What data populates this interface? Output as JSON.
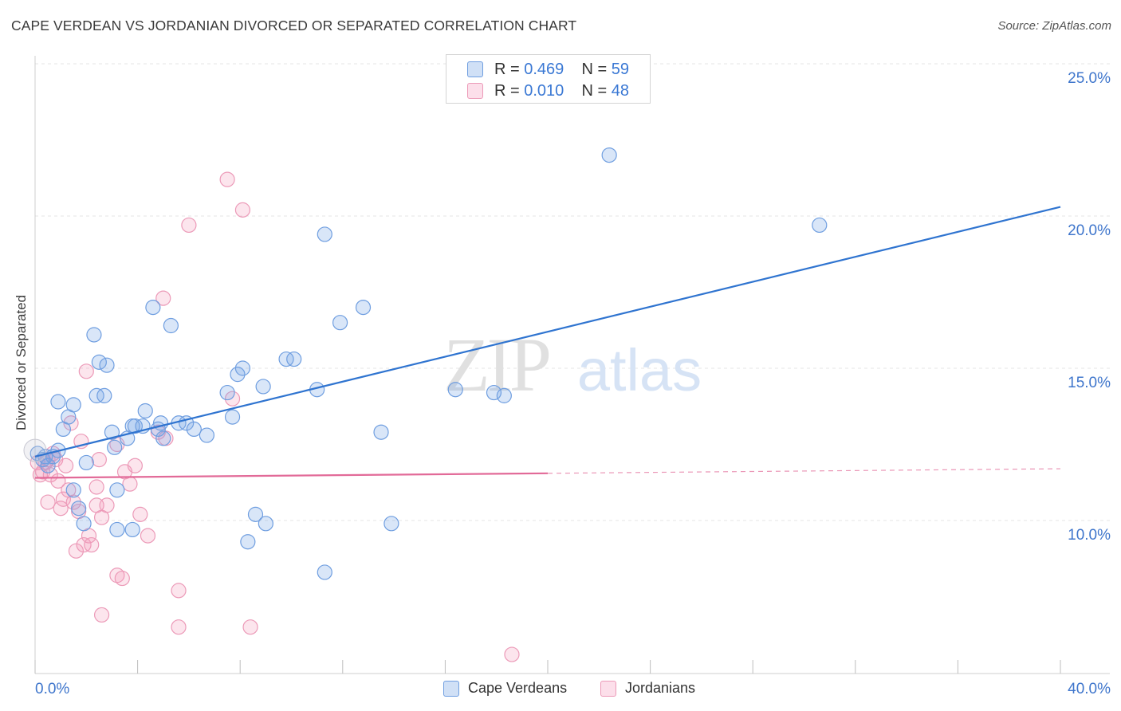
{
  "header": {
    "title": "CAPE VERDEAN VS JORDANIAN DIVORCED OR SEPARATED CORRELATION CHART",
    "source": "Source: ZipAtlas.com"
  },
  "legend_top": {
    "rows": [
      {
        "r_label": "R = ",
        "r_value": "0.469",
        "n_label": "N = ",
        "n_value": "59"
      },
      {
        "r_label": "R = ",
        "r_value": "0.010",
        "n_label": "N = ",
        "n_value": "48"
      }
    ]
  },
  "watermark": {
    "zip": "ZIP",
    "atlas": "atlas"
  },
  "colors": {
    "cape_fill": "rgba(120,165,230,0.28)",
    "cape_stroke": "#6f9ee0",
    "cape_line": "#2f74d0",
    "jor_fill": "rgba(245,150,185,0.25)",
    "jor_stroke": "#ec9ab8",
    "jor_line": "#e26a98",
    "tick_text": "#3f76cc",
    "grid": "#e4e4e4"
  },
  "chart_data": {
    "type": "scatter",
    "title": "CAPE VERDEAN VS JORDANIAN DIVORCED OR SEPARATED CORRELATION CHART",
    "xlabel": "",
    "ylabel": "Divorced or Separated",
    "xlim": [
      0,
      40
    ],
    "ylim": [
      5.5,
      26.5
    ],
    "x_ticks": [
      0,
      4,
      8,
      12,
      16,
      20,
      24,
      28,
      32,
      36,
      40
    ],
    "x_tick_labels": [
      {
        "x": 0,
        "label": "0.0%"
      },
      {
        "x": 40,
        "label": "40.0%"
      }
    ],
    "y_ticks": [
      10,
      15,
      20,
      25
    ],
    "y_tick_labels": [
      "10.0%",
      "15.0%",
      "20.0%",
      "25.0%"
    ],
    "grid": true,
    "legend": "top-center",
    "series": [
      {
        "name": "Cape Verdeans",
        "r": 0.469,
        "n": 59,
        "trend": {
          "x": [
            0,
            40
          ],
          "y": [
            12.1,
            20.3
          ],
          "dashed_after": null
        },
        "points": [
          [
            0.1,
            12.2
          ],
          [
            0.3,
            12.0
          ],
          [
            0.4,
            12.1
          ],
          [
            0.5,
            11.8
          ],
          [
            0.7,
            12.1
          ],
          [
            0.9,
            12.3
          ],
          [
            0.9,
            13.9
          ],
          [
            1.1,
            13.0
          ],
          [
            1.3,
            13.4
          ],
          [
            1.5,
            13.8
          ],
          [
            1.5,
            11.0
          ],
          [
            1.7,
            10.4
          ],
          [
            1.9,
            9.9
          ],
          [
            2.0,
            11.9
          ],
          [
            2.3,
            16.1
          ],
          [
            2.4,
            14.1
          ],
          [
            2.5,
            15.2
          ],
          [
            2.7,
            14.1
          ],
          [
            2.8,
            15.1
          ],
          [
            3.0,
            12.9
          ],
          [
            3.1,
            12.4
          ],
          [
            3.2,
            11.0
          ],
          [
            3.2,
            9.7
          ],
          [
            3.6,
            12.7
          ],
          [
            3.8,
            13.1
          ],
          [
            3.9,
            13.1
          ],
          [
            4.2,
            13.1
          ],
          [
            4.3,
            13.6
          ],
          [
            4.6,
            17.0
          ],
          [
            4.8,
            13.0
          ],
          [
            4.9,
            13.2
          ],
          [
            5.0,
            12.7
          ],
          [
            5.3,
            16.4
          ],
          [
            5.6,
            13.2
          ],
          [
            5.9,
            13.2
          ],
          [
            6.2,
            13.0
          ],
          [
            6.7,
            12.8
          ],
          [
            7.5,
            14.2
          ],
          [
            7.7,
            13.4
          ],
          [
            7.9,
            14.8
          ],
          [
            8.1,
            15.0
          ],
          [
            8.3,
            9.3
          ],
          [
            8.6,
            10.2
          ],
          [
            8.9,
            14.4
          ],
          [
            9.0,
            9.9
          ],
          [
            9.8,
            15.3
          ],
          [
            10.1,
            15.3
          ],
          [
            11.0,
            14.3
          ],
          [
            11.3,
            19.4
          ],
          [
            11.3,
            8.3
          ],
          [
            11.9,
            16.5
          ],
          [
            12.8,
            17.0
          ],
          [
            13.5,
            12.9
          ],
          [
            13.9,
            9.9
          ],
          [
            16.4,
            14.3
          ],
          [
            17.9,
            14.2
          ],
          [
            18.3,
            14.1
          ],
          [
            22.4,
            22.0
          ],
          [
            30.6,
            19.7
          ],
          [
            3.8,
            9.7
          ]
        ]
      },
      {
        "name": "Jordanians",
        "r": 0.01,
        "n": 48,
        "trend": {
          "x": [
            0,
            40
          ],
          "y": [
            11.4,
            11.7
          ],
          "dashed_after": 20
        },
        "points": [
          [
            0.1,
            11.9
          ],
          [
            0.2,
            11.5
          ],
          [
            0.3,
            11.6
          ],
          [
            0.4,
            11.9
          ],
          [
            0.5,
            12.0
          ],
          [
            0.5,
            10.6
          ],
          [
            0.6,
            11.5
          ],
          [
            0.7,
            12.2
          ],
          [
            0.8,
            12.0
          ],
          [
            0.9,
            11.3
          ],
          [
            1.0,
            10.4
          ],
          [
            1.1,
            10.7
          ],
          [
            1.2,
            11.8
          ],
          [
            1.3,
            11.0
          ],
          [
            1.4,
            13.2
          ],
          [
            1.5,
            10.6
          ],
          [
            1.6,
            9.0
          ],
          [
            1.7,
            10.3
          ],
          [
            1.8,
            12.6
          ],
          [
            1.9,
            9.2
          ],
          [
            2.0,
            14.9
          ],
          [
            2.1,
            9.5
          ],
          [
            2.2,
            9.2
          ],
          [
            2.4,
            10.5
          ],
          [
            2.4,
            11.1
          ],
          [
            2.5,
            12.0
          ],
          [
            2.6,
            10.1
          ],
          [
            2.6,
            6.9
          ],
          [
            2.8,
            10.5
          ],
          [
            3.2,
            12.5
          ],
          [
            3.2,
            8.2
          ],
          [
            3.4,
            8.1
          ],
          [
            3.5,
            11.6
          ],
          [
            3.7,
            11.2
          ],
          [
            3.9,
            11.8
          ],
          [
            4.1,
            10.2
          ],
          [
            4.4,
            9.5
          ],
          [
            4.8,
            12.9
          ],
          [
            5.0,
            17.3
          ],
          [
            5.1,
            12.7
          ],
          [
            5.6,
            7.7
          ],
          [
            5.6,
            6.5
          ],
          [
            6.0,
            19.7
          ],
          [
            7.5,
            21.2
          ],
          [
            7.7,
            14.0
          ],
          [
            8.1,
            20.2
          ],
          [
            8.4,
            6.5
          ],
          [
            18.6,
            5.6
          ]
        ]
      }
    ]
  },
  "bottom_legend": {
    "items": [
      {
        "label": "Cape Verdeans"
      },
      {
        "label": "Jordanians"
      }
    ]
  }
}
